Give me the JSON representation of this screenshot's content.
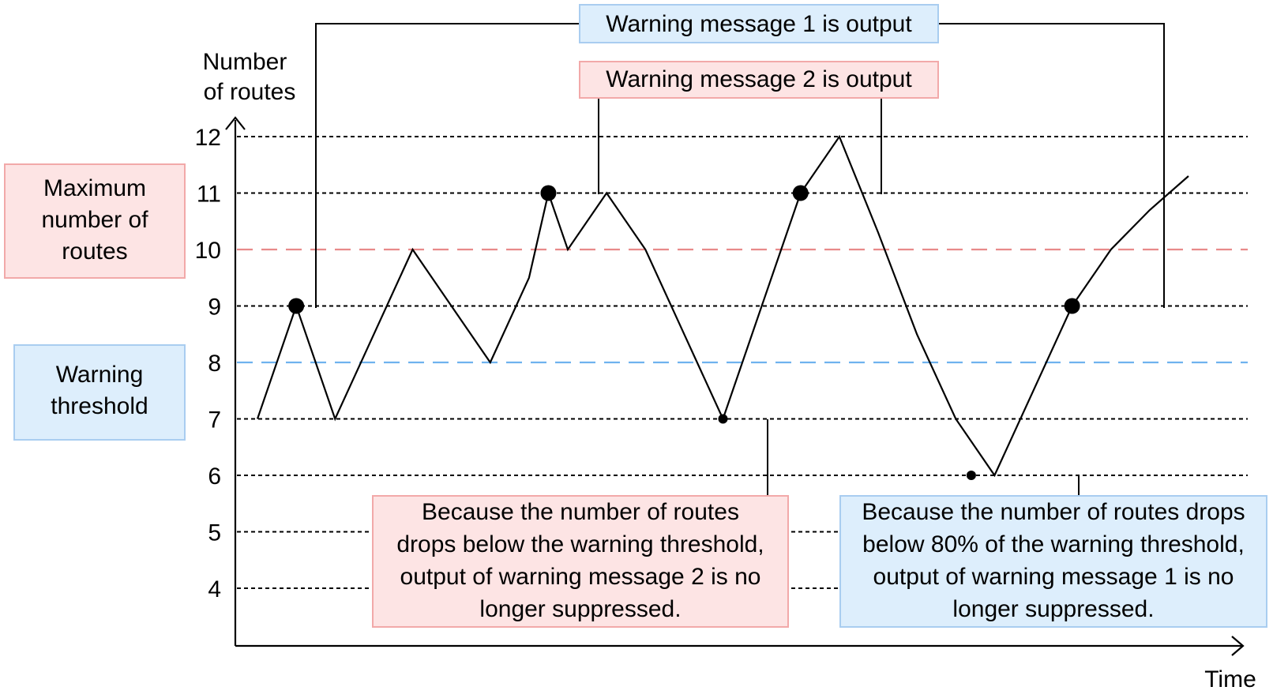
{
  "chart_data": {
    "type": "line",
    "ylabel_lines": [
      "Number",
      "of routes"
    ],
    "xlabel": "Time",
    "y_ticks": [
      4,
      5,
      6,
      7,
      8,
      9,
      10,
      11,
      12
    ],
    "dotted_gridlines": [
      4,
      5,
      6,
      7,
      9,
      11,
      12
    ],
    "series": [
      {
        "color": "#000000",
        "x": [
          0,
          1,
          2,
          3,
          4,
          5,
          6,
          7,
          7.5,
          8,
          9,
          10,
          11,
          12,
          13,
          14,
          15,
          16,
          17,
          18,
          19,
          20,
          21,
          22,
          23,
          24
        ],
        "values": [
          7,
          9,
          7,
          8.5,
          10,
          9,
          8,
          9.5,
          11,
          10,
          11,
          10,
          8.5,
          7,
          9,
          11,
          12,
          10.3,
          8.5,
          7,
          6,
          7.5,
          9,
          10,
          10.7,
          11.3
        ]
      }
    ],
    "threshold_lines": [
      {
        "value": 10,
        "color": "#e88a8a",
        "label_lines": [
          "Maximum",
          "number of",
          "routes"
        ],
        "label_bg": "#fde4e4",
        "label_border": "#f2a9a9"
      },
      {
        "value": 8,
        "color": "#6fb2ee",
        "label_lines": [
          "Warning",
          "threshold"
        ],
        "label_bg": "#ddeefc",
        "label_border": "#a9cdf0"
      }
    ],
    "marked_points": [
      {
        "x": 1,
        "y": 9,
        "style": "large"
      },
      {
        "x": 7.5,
        "y": 11,
        "style": "large"
      },
      {
        "x": 14,
        "y": 11,
        "style": "large"
      },
      {
        "x": 21,
        "y": 9,
        "style": "large"
      },
      {
        "x": 12,
        "y": 7,
        "style": "small"
      },
      {
        "x": 18.4,
        "y": 6,
        "style": "small"
      }
    ],
    "annotations": [
      {
        "id": "msg1",
        "text": "Warning message 1 is output",
        "bg": "#ddeefc",
        "border": "#a9cdf0"
      },
      {
        "id": "msg2",
        "text": "Warning message 2 is output",
        "bg": "#fde4e4",
        "border": "#f2a9a9"
      },
      {
        "id": "note-left",
        "lines": [
          "Because the number of routes",
          "drops below the warning threshold,",
          "output of warning message 2 is no",
          "longer suppressed."
        ],
        "bg": "#fde4e4",
        "border": "#f2a9a9"
      },
      {
        "id": "note-right",
        "lines": [
          "Because the number of routes drops",
          "below 80% of the warning threshold,",
          "output of warning message 1 is no",
          "longer suppressed."
        ],
        "bg": "#ddeefc",
        "border": "#a9cdf0"
      }
    ]
  }
}
